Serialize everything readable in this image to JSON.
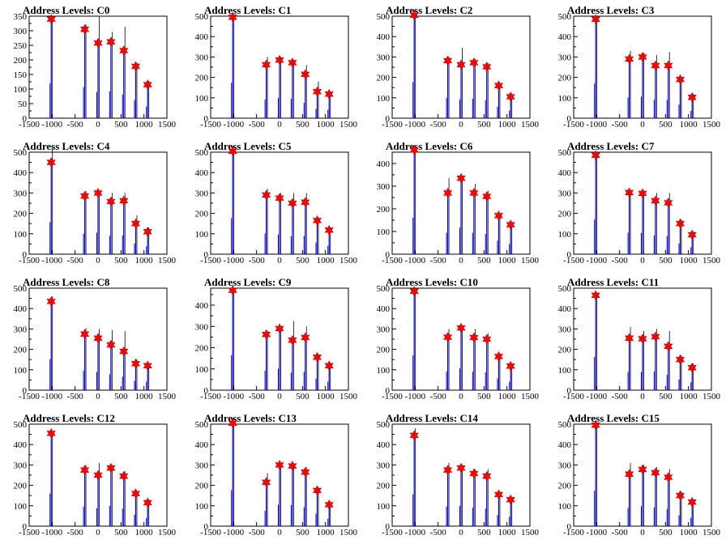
{
  "chart_data": [
    {
      "type": "bar",
      "title": "Address Levels: C0",
      "xlim": [
        -1500,
        1500
      ],
      "ylim": [
        0,
        350
      ],
      "yticks": [
        0,
        50,
        100,
        150,
        200,
        250,
        300,
        350
      ],
      "xticks": [
        -1500,
        -1000,
        -500,
        0,
        500,
        1000,
        1500
      ],
      "marker_x": [
        -1020,
        -290,
        0,
        280,
        560,
        820,
        1080
      ],
      "marker_y": [
        340,
        305,
        258,
        262,
        232,
        178,
        115
      ],
      "peak_y": [
        340,
        322,
        348,
        296,
        314,
        190,
        128
      ]
    },
    {
      "type": "bar",
      "title": "Address Levels: C1",
      "xlim": [
        -1500,
        1500
      ],
      "ylim": [
        0,
        500
      ],
      "yticks": [
        0,
        100,
        200,
        300,
        400,
        500
      ],
      "xticks": [
        -1500,
        -1000,
        -500,
        0,
        500,
        1000,
        1500
      ],
      "marker_x": [
        -1020,
        -290,
        0,
        280,
        560,
        820,
        1080
      ],
      "marker_y": [
        495,
        262,
        285,
        272,
        215,
        130,
        118
      ],
      "peak_y": [
        495,
        300,
        300,
        285,
        260,
        180,
        130
      ]
    },
    {
      "type": "bar",
      "title": "Address Levels: C2",
      "xlim": [
        -1500,
        1500
      ],
      "ylim": [
        0,
        500
      ],
      "yticks": [
        0,
        100,
        200,
        300,
        400,
        500
      ],
      "xticks": [
        -1500,
        -1000,
        -500,
        0,
        500,
        1000,
        1500
      ],
      "marker_x": [
        -1020,
        -290,
        0,
        280,
        560,
        820,
        1080
      ],
      "marker_y": [
        505,
        282,
        262,
        272,
        252,
        160,
        105
      ],
      "peak_y": [
        505,
        300,
        345,
        290,
        270,
        170,
        120
      ]
    },
    {
      "type": "bar",
      "title": "Address Levels: C3",
      "xlim": [
        -1500,
        1500
      ],
      "ylim": [
        0,
        500
      ],
      "yticks": [
        0,
        100,
        200,
        300,
        400,
        500
      ],
      "xticks": [
        -1500,
        -1000,
        -500,
        0,
        500,
        1000,
        1500
      ],
      "marker_x": [
        -1020,
        -290,
        0,
        280,
        560,
        820,
        1080
      ],
      "marker_y": [
        485,
        290,
        300,
        258,
        258,
        190,
        102
      ],
      "peak_y": [
        485,
        330,
        320,
        310,
        325,
        200,
        120
      ]
    },
    {
      "type": "bar",
      "title": "Address Levels: C4",
      "xlim": [
        -1500,
        1500
      ],
      "ylim": [
        0,
        500
      ],
      "yticks": [
        0,
        100,
        200,
        300,
        400,
        500
      ],
      "xticks": [
        -1500,
        -1000,
        -500,
        0,
        500,
        1000,
        1500
      ],
      "marker_x": [
        -1020,
        -290,
        0,
        280,
        560,
        820,
        1080
      ],
      "marker_y": [
        450,
        285,
        300,
        258,
        262,
        150,
        110
      ],
      "peak_y": [
        520,
        310,
        310,
        300,
        300,
        190,
        130
      ]
    },
    {
      "type": "bar",
      "title": "Address Levels: C5",
      "xlim": [
        -1500,
        1500
      ],
      "ylim": [
        0,
        500
      ],
      "yticks": [
        0,
        100,
        200,
        300,
        400,
        500
      ],
      "xticks": [
        -1500,
        -1000,
        -500,
        0,
        500,
        1000,
        1500
      ],
      "marker_x": [
        -1020,
        -290,
        0,
        280,
        560,
        820,
        1080
      ],
      "marker_y": [
        505,
        290,
        275,
        250,
        255,
        165,
        118
      ],
      "peak_y": [
        505,
        320,
        300,
        300,
        300,
        180,
        130
      ]
    },
    {
      "type": "bar",
      "title": "Address Levels: C6",
      "xlim": [
        -1500,
        1500
      ],
      "ylim": [
        0,
        450
      ],
      "yticks": [
        0,
        100,
        200,
        300,
        400
      ],
      "xticks": [
        -1500,
        -1000,
        -500,
        0,
        500,
        1000,
        1500
      ],
      "marker_x": [
        -1020,
        -290,
        0,
        280,
        560,
        820,
        1080
      ],
      "marker_y": [
        460,
        270,
        335,
        270,
        255,
        170,
        130
      ],
      "peak_y": [
        460,
        335,
        345,
        310,
        280,
        180,
        140
      ]
    },
    {
      "type": "bar",
      "title": "Address Levels: C7",
      "xlim": [
        -1500,
        1500
      ],
      "ylim": [
        0,
        500
      ],
      "yticks": [
        0,
        100,
        200,
        300,
        400,
        500
      ],
      "xticks": [
        -1500,
        -1000,
        -500,
        0,
        500,
        1000,
        1500
      ],
      "marker_x": [
        -1020,
        -290,
        0,
        280,
        560,
        820,
        1080
      ],
      "marker_y": [
        485,
        302,
        298,
        262,
        252,
        150,
        95
      ],
      "peak_y": [
        485,
        310,
        310,
        300,
        300,
        170,
        110
      ]
    },
    {
      "type": "bar",
      "title": "Address Levels: C8",
      "xlim": [
        -1500,
        1500
      ],
      "ylim": [
        0,
        500
      ],
      "yticks": [
        0,
        100,
        200,
        300,
        400,
        500
      ],
      "xticks": [
        -1500,
        -1000,
        -500,
        0,
        500,
        1000,
        1500
      ],
      "marker_x": [
        -1020,
        -290,
        0,
        280,
        560,
        820,
        1080
      ],
      "marker_y": [
        435,
        275,
        255,
        222,
        190,
        130,
        120
      ],
      "peak_y": [
        460,
        305,
        300,
        295,
        290,
        150,
        130
      ]
    },
    {
      "type": "bar",
      "title": "Address Levels: C9",
      "xlim": [
        -1500,
        1500
      ],
      "ylim": [
        0,
        480
      ],
      "yticks": [
        0,
        100,
        200,
        300,
        400
      ],
      "xticks": [
        -1500,
        -1000,
        -500,
        0,
        500,
        1000,
        1500
      ],
      "marker_x": [
        -1020,
        -290,
        0,
        280,
        560,
        820,
        1080
      ],
      "marker_y": [
        470,
        262,
        290,
        235,
        248,
        155,
        115
      ],
      "peak_y": [
        470,
        280,
        300,
        325,
        300,
        170,
        130
      ]
    },
    {
      "type": "bar",
      "title": "Address Levels: C10",
      "xlim": [
        -1500,
        1500
      ],
      "ylim": [
        0,
        500
      ],
      "yticks": [
        0,
        100,
        200,
        300,
        400,
        500
      ],
      "xticks": [
        -1500,
        -1000,
        -500,
        0,
        500,
        1000,
        1500
      ],
      "marker_x": [
        -1020,
        -290,
        0,
        280,
        560,
        820,
        1080
      ],
      "marker_y": [
        485,
        260,
        305,
        258,
        250,
        165,
        118
      ],
      "peak_y": [
        485,
        300,
        310,
        300,
        280,
        180,
        130
      ]
    },
    {
      "type": "bar",
      "title": "Address Levels: C11",
      "xlim": [
        -1500,
        1500
      ],
      "ylim": [
        0,
        500
      ],
      "yticks": [
        0,
        100,
        200,
        300,
        400,
        500
      ],
      "xticks": [
        -1500,
        -1000,
        -500,
        0,
        500,
        1000,
        1500
      ],
      "marker_x": [
        -1020,
        -290,
        0,
        280,
        560,
        820,
        1080
      ],
      "marker_y": [
        465,
        255,
        252,
        262,
        215,
        150,
        110
      ],
      "peak_y": [
        465,
        310,
        290,
        300,
        290,
        170,
        130
      ]
    },
    {
      "type": "bar",
      "title": "Address Levels: C12",
      "xlim": [
        -1500,
        1500
      ],
      "ylim": [
        0,
        500
      ],
      "yticks": [
        0,
        100,
        200,
        300,
        400,
        500
      ],
      "xticks": [
        -1500,
        -1000,
        -500,
        0,
        500,
        1000,
        1500
      ],
      "marker_x": [
        -1020,
        -290,
        0,
        280,
        560,
        820,
        1080
      ],
      "marker_y": [
        455,
        275,
        250,
        285,
        245,
        160,
        115
      ],
      "peak_y": [
        455,
        300,
        310,
        300,
        270,
        170,
        130
      ]
    },
    {
      "type": "bar",
      "title": "Address Levels: C13",
      "xlim": [
        -1500,
        1500
      ],
      "ylim": [
        0,
        500
      ],
      "yticks": [
        0,
        100,
        200,
        300,
        400,
        500
      ],
      "xticks": [
        -1500,
        -1000,
        -500,
        0,
        500,
        1000,
        1500
      ],
      "marker_x": [
        -1020,
        -290,
        0,
        280,
        560,
        820,
        1080
      ],
      "marker_y": [
        505,
        215,
        300,
        295,
        265,
        175,
        105
      ],
      "peak_y": [
        505,
        260,
        310,
        300,
        290,
        190,
        120
      ]
    },
    {
      "type": "bar",
      "title": "Address Levels: C14",
      "xlim": [
        -1500,
        1500
      ],
      "ylim": [
        0,
        500
      ],
      "yticks": [
        0,
        100,
        200,
        300,
        400,
        500
      ],
      "xticks": [
        -1500,
        -1000,
        -500,
        0,
        500,
        1000,
        1500
      ],
      "marker_x": [
        -1020,
        -290,
        0,
        280,
        560,
        820,
        1080
      ],
      "marker_y": [
        445,
        275,
        285,
        258,
        245,
        155,
        130
      ],
      "peak_y": [
        480,
        310,
        300,
        280,
        280,
        170,
        140
      ]
    },
    {
      "type": "bar",
      "title": "Address Levels: C15",
      "xlim": [
        -1500,
        1500
      ],
      "ylim": [
        0,
        500
      ],
      "yticks": [
        0,
        100,
        200,
        300,
        400,
        500
      ],
      "xticks": [
        -1500,
        -1000,
        -500,
        0,
        500,
        1000,
        1500
      ],
      "marker_x": [
        -1020,
        -290,
        0,
        280,
        560,
        820,
        1080
      ],
      "marker_y": [
        495,
        255,
        278,
        262,
        240,
        150,
        118
      ],
      "peak_y": [
        495,
        310,
        300,
        290,
        280,
        170,
        130
      ]
    }
  ],
  "colors": {
    "bar": "#0000ee",
    "frame": "#000000",
    "marker": "#ff0000"
  }
}
